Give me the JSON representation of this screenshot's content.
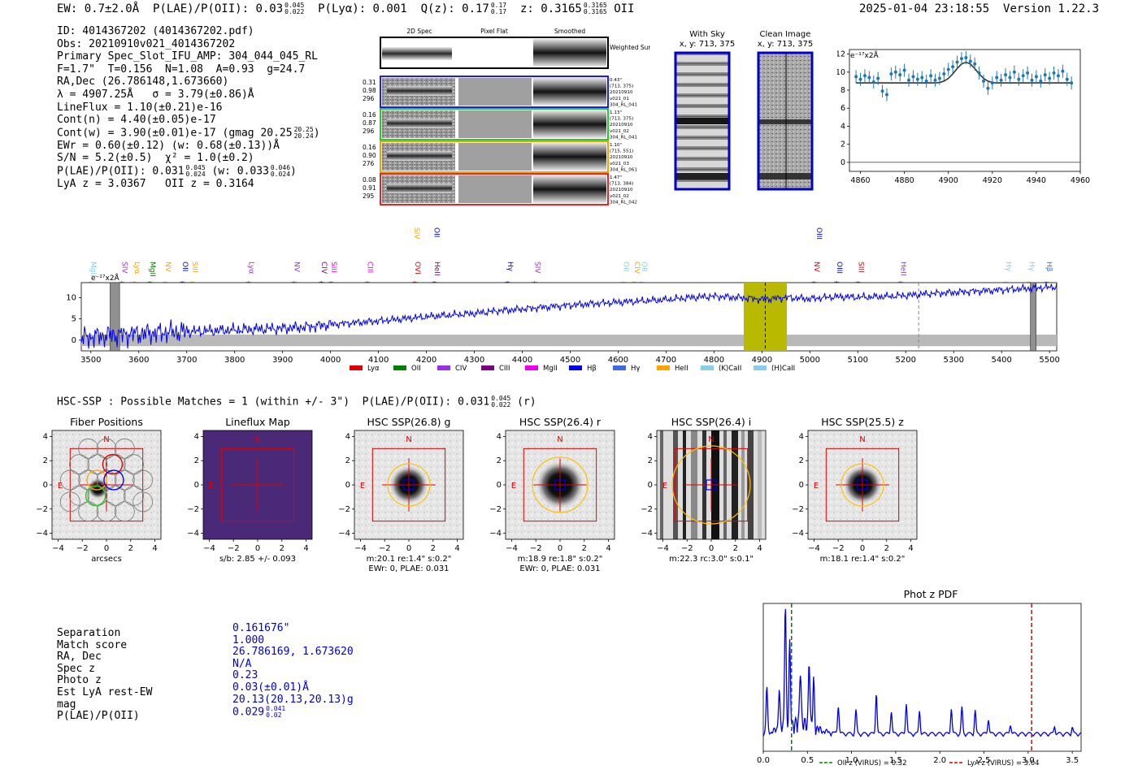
{
  "header": {
    "ew_label": "EW: 0.7±2.0Å",
    "plae_label": "P(LAE)/P(OII): 0.03",
    "plae_hi": "0.045",
    "plae_lo": "0.022",
    "plya_label": "P(Lyα): 0.001",
    "qz_label": "Q(z): 0.17",
    "qz_hi": "0.17",
    "qz_lo": "0.17",
    "z_label": "z: 0.3165",
    "z_hi": "0.3165",
    "z_lo": "0.3165",
    "z_line": "OII",
    "timestamp": "2025-01-04 23:18:55",
    "version": "Version 1.22.3"
  },
  "info": {
    "id": "ID: 4014367202 (4014367202.pdf)",
    "obs": "Obs: 20210910v021_4014367202",
    "primary": "Primary Spec_Slot_IFU_AMP: 304_044_045_RL",
    "fiber": "F=1.7\"  T=0.156  N=1.08  A=0.93  g=24.7",
    "radec": "RA,Dec (26.786148,1.673660)",
    "lambda": "λ = 4907.25Å   σ = 3.79(±0.86)Å",
    "lineflux": "LineFlux = 1.10(±0.21)e-16",
    "contn": "Cont(n) = 4.40(±0.05)e-17",
    "contw": "Cont(w) = 3.90(±0.01)e-17 (gmag 20.25",
    "contw_hi": "20.25",
    "contw_lo": "20.24",
    "ewr": "EWr = 0.60(±0.12) (w: 0.68(±0.13))Å",
    "sn": "S/N = 5.2(±0.5)  χ² = 1.0(±0.2)",
    "plae": "P(LAE)/P(OII): 0.031",
    "plae_hi": "0.045",
    "plae_lo": "0.024",
    "plae_w": "(w: 0.033",
    "plae_w_hi": "0.046",
    "plae_w_lo": "0.024",
    "lya": "LyA z = 3.0367   OII z = 0.3164"
  },
  "spec2d": {
    "col_2d": "2D Spec",
    "col_flat": "Pixel Flat",
    "col_smooth": "Smoothed",
    "weighted_sum": "Weighted Sum",
    "fibers": [
      {
        "w1": "0.31",
        "w2": "0.98",
        "w3": "296",
        "dist": "0.43\"",
        "xy": "(713, 375)",
        "date": "20210910",
        "obs": "v021_01",
        "amp": "304_RL_041",
        "color": "#1a1aff"
      },
      {
        "w1": "0.16",
        "w2": "0.87",
        "w3": "296",
        "dist": "1.13\"",
        "xy": "(713, 375)",
        "date": "20210910",
        "obs": "v021_02",
        "amp": "304_RL_041",
        "color": "#22cc22"
      },
      {
        "w1": "0.16",
        "w2": "0.90",
        "w3": "276",
        "dist": "1.10\"",
        "xy": "(715, 551)",
        "date": "20210910",
        "obs": "v021_03",
        "amp": "304_RL_061",
        "color": "#ff9900"
      },
      {
        "w1": "0.08",
        "w2": "0.91",
        "w3": "295",
        "dist": "1.47\"",
        "xy": "(713, 384)",
        "date": "20210910",
        "obs": "v021_02",
        "amp": "304_RL_042",
        "color": "#ee2222"
      }
    ]
  },
  "with_sky": {
    "title": "With Sky",
    "coords": "x, y: 713, 375"
  },
  "clean_image": {
    "title": "Clean Image",
    "coords": "x, y: 713, 375"
  },
  "colors": {
    "blue": "#0000ee",
    "gray": "#b9b9b9",
    "olive": "#b9b900",
    "red": "#e00000",
    "orange": "#ffa500"
  },
  "zoom_plot": {
    "unit_label": "e⁻¹⁷x2Å",
    "x_ticks": [
      "4860",
      "4880",
      "4900",
      "4920",
      "4940",
      "4960"
    ],
    "y_ticks": [
      "0",
      "2",
      "4",
      "6",
      "8",
      "10",
      "12"
    ]
  },
  "full_spec": {
    "unit_label": "e⁻¹⁷x2Å",
    "x_ticks": [
      "3500",
      "3600",
      "3700",
      "3800",
      "3900",
      "4000",
      "4100",
      "4200",
      "4300",
      "4400",
      "4500",
      "4600",
      "4700",
      "4800",
      "4900",
      "5000",
      "5100",
      "5200",
      "5300",
      "5400",
      "5500"
    ],
    "y_ticks": [
      "0",
      "5",
      "10"
    ],
    "line_labels": [
      {
        "t": "MgII",
        "w": 3500,
        "c": "#87ceeb"
      },
      {
        "t": "SIV",
        "w": 3566,
        "c": "#9a30e0"
      },
      {
        "t": "Lyα",
        "w": 3592,
        "c": "#ffa500"
      },
      {
        "t": "MgII",
        "w": 3624,
        "c": "#008000"
      },
      {
        "t": "NV",
        "w": 3656,
        "c": "#ffa500"
      },
      {
        "t": "OII",
        "w": 3692,
        "c": "#0000ee"
      },
      {
        "t": "SIII",
        "w": 3712,
        "c": "#ffa500"
      },
      {
        "t": "Lyα",
        "w": 3830,
        "c": "#9a30e0"
      },
      {
        "t": "NV",
        "w": 3925,
        "c": "#9a30e0"
      },
      {
        "t": "CIV",
        "w": 3982,
        "c": "#800080"
      },
      {
        "t": "SIII",
        "w": 4002,
        "c": "#ee00ee"
      },
      {
        "t": "CIII",
        "w": 4078,
        "c": "#ee00ee"
      },
      {
        "t": "OVI",
        "w": 4177,
        "c": "#e00000"
      },
      {
        "t": "HeII",
        "w": 4218,
        "c": "#800080"
      },
      {
        "t": "Hγ",
        "w": 4370,
        "c": "#0000ee"
      },
      {
        "t": "SIV",
        "w": 4427,
        "c": "#9a30e0"
      },
      {
        "t": "OII",
        "w": 4612,
        "c": "#87ceeb"
      },
      {
        "t": "CIV",
        "w": 4635,
        "c": "#ffa500"
      },
      {
        "t": "OII",
        "w": 4650,
        "c": "#87ceeb"
      },
      {
        "t": "NV",
        "w": 5010,
        "c": "#e00000"
      },
      {
        "t": "OIII",
        "w": 5057,
        "c": "#0000cc"
      },
      {
        "t": "SIII",
        "w": 5102,
        "c": "#e00000"
      },
      {
        "t": "HeII",
        "w": 5190,
        "c": "#9a30e0"
      },
      {
        "t": "Hγ",
        "w": 5410,
        "c": "#87ceeb"
      },
      {
        "t": "Hγ",
        "w": 5458,
        "c": "#87ceeb"
      },
      {
        "t": "Hβ",
        "w": 5495,
        "c": "#4169e1"
      }
    ],
    "upper_labels": [
      {
        "t": "SIV",
        "w": 4175,
        "c": "#ffa500"
      },
      {
        "t": "OII",
        "w": 4217,
        "c": "#0000ee"
      },
      {
        "t": "OIII",
        "w": 5015,
        "c": "#0000ee"
      }
    ],
    "legend": [
      {
        "t": "Lyα",
        "c": "#e00000"
      },
      {
        "t": "OII",
        "c": "#008000"
      },
      {
        "t": "CIV",
        "c": "#9a30e0"
      },
      {
        "t": "CIII",
        "c": "#800080"
      },
      {
        "t": "MgII",
        "c": "#ee00ee"
      },
      {
        "t": "Hβ",
        "c": "#0000ee"
      },
      {
        "t": "Hγ",
        "c": "#4169e1"
      },
      {
        "t": "HeII",
        "c": "#ffa500"
      },
      {
        "t": "(K)CaII",
        "c": "#87ceeb"
      },
      {
        "t": "(H)CaII",
        "c": "#87ceeb"
      }
    ]
  },
  "hsc_line": "HSC-SSP : Possible Matches = 1 (within +/- 3\")  P(LAE)/P(OII): 0.031",
  "hsc_hi": "0.045",
  "hsc_lo": "0.022",
  "hsc_band": "(r)",
  "cutouts": [
    {
      "title": "Fiber Positions",
      "cap1": "arcsecs",
      "cap2": ""
    },
    {
      "title": "Lineflux Map",
      "cap1": "s/b: 2.85 +/- 0.093",
      "cap2": ""
    },
    {
      "title": "HSC SSP(26.8) g",
      "cap1": "m:20.1  re:1.4\"  s:0.2\"",
      "cap2": "EWr: 0, PLAE: 0.031"
    },
    {
      "title": "HSC SSP(26.4) r",
      "cap1": "m:18.9  re:1.8\"  s:0.2\"",
      "cap2": "EWr: 0, PLAE: 0.031"
    },
    {
      "title": "HSC SSP(26.4) i",
      "cap1": "m:22.3 rc:3.0\"  s:0.1\"",
      "cap2": ""
    },
    {
      "title": "HSC SSP(25.5) z",
      "cap1": "m:18.1  re:1.4\"  s:0.2\"",
      "cap2": ""
    }
  ],
  "compass": {
    "n": "N",
    "e": "E"
  },
  "cutout_ticks": [
    "−4",
    "−2",
    "0",
    "2",
    "4"
  ],
  "catalog": {
    "labels": [
      "Separation",
      "Match score",
      "RA, Dec",
      "Spec z",
      "Photo z",
      "Est LyA rest-EW",
      "mag",
      "P(LAE)/P(OII)"
    ],
    "values": [
      "0.161676\"",
      "1.000",
      "26.786169, 1.673620",
      "N/A",
      "0.23",
      "0.03(±0.01)Å",
      "20.13(20.13,20.13)g",
      "0.029"
    ],
    "plae_hi": "0.041",
    "plae_lo": "0.02"
  },
  "chart_data": [
    {
      "type": "line",
      "title": "",
      "xlabel": "",
      "ylabel": "e⁻¹⁷x2Å",
      "xlim": [
        4855,
        4960
      ],
      "ylim": [
        -1,
        12.5
      ],
      "x": [
        4858,
        4860,
        4862,
        4864,
        4866,
        4868,
        4870,
        4872,
        4874,
        4876,
        4878,
        4880,
        4882,
        4884,
        4886,
        4888,
        4890,
        4892,
        4894,
        4896,
        4898,
        4900,
        4902,
        4904,
        4906,
        4908,
        4910,
        4912,
        4914,
        4916,
        4918,
        4920,
        4922,
        4924,
        4926,
        4928,
        4930,
        4932,
        4934,
        4936,
        4938,
        4940,
        4942,
        4944,
        4946,
        4948,
        4950,
        4952,
        4954,
        4956
      ],
      "series": [
        {
          "name": "data",
          "values": [
            9.5,
            9.2,
            9.6,
            9.4,
            8.9,
            9.3,
            7.9,
            7.5,
            9.8,
            10.0,
            9.7,
            10.2,
            9.1,
            9.5,
            9.2,
            9.4,
            9.0,
            9.6,
            9.1,
            9.3,
            9.8,
            10.3,
            10.6,
            11.1,
            11.5,
            11.6,
            11.2,
            10.9,
            9.9,
            9.0,
            8.2,
            8.8,
            9.4,
            9.1,
            9.7,
            9.4,
            10.0,
            9.2,
            9.6,
            9.9,
            9.1,
            9.5,
            9.0,
            9.7,
            9.3,
            9.9,
            9.6,
            10.1,
            9.2,
            8.8
          ]
        },
        {
          "name": "fit",
          "values": [
            8.8,
            8.8,
            8.8,
            8.8,
            8.8,
            8.8,
            8.8,
            8.8,
            8.8,
            8.8,
            8.8,
            8.8,
            8.8,
            8.8,
            8.8,
            8.8,
            8.8,
            8.8,
            8.8,
            8.85,
            9.0,
            9.3,
            9.8,
            10.4,
            10.9,
            11.1,
            10.9,
            10.4,
            9.8,
            9.3,
            9.0,
            8.85,
            8.8,
            8.8,
            8.8,
            8.8,
            8.8,
            8.8,
            8.8,
            8.8,
            8.8,
            8.8,
            8.8,
            8.8,
            8.8,
            8.8,
            8.8,
            8.8,
            8.8,
            8.8
          ]
        }
      ]
    },
    {
      "type": "line",
      "title": "",
      "xlabel": "",
      "ylabel": "e⁻¹⁷x2Å",
      "xlim": [
        3480,
        5515
      ],
      "ylim": [
        -2.5,
        13.5
      ],
      "x": [
        3480,
        3520,
        3560,
        3600,
        3650,
        3700,
        3750,
        3800,
        3850,
        3900,
        3950,
        4000,
        4050,
        4100,
        4150,
        4200,
        4250,
        4300,
        4350,
        4400,
        4450,
        4500,
        4550,
        4600,
        4650,
        4700,
        4750,
        4800,
        4850,
        4900,
        4950,
        5000,
        5050,
        5100,
        5150,
        5200,
        5250,
        5300,
        5350,
        5400,
        5450,
        5500,
        5515
      ],
      "series": [
        {
          "name": "flux",
          "values": [
            0.5,
            1.0,
            1.3,
            1.5,
            1.8,
            2.0,
            2.2,
            2.4,
            2.6,
            2.8,
            3.1,
            3.7,
            4.1,
            4.5,
            5.0,
            5.5,
            5.9,
            6.3,
            6.9,
            7.3,
            7.8,
            8.2,
            8.6,
            8.9,
            9.2,
            9.5,
            10.0,
            10.3,
            10.0,
            9.6,
            10.0,
            9.7,
            10.2,
            10.1,
            10.2,
            10.5,
            10.9,
            11.2,
            11.5,
            11.8,
            12.1,
            12.4,
            12.6
          ]
        }
      ],
      "highlight_band": [
        4862,
        4952
      ],
      "marker_lines": [
        4907,
        5227
      ],
      "masked_regions": [
        [
          3540,
          3560
        ],
        [
          5460,
          5472
        ]
      ]
    },
    {
      "type": "line",
      "title": "Phot z PDF",
      "xlabel": "",
      "ylabel": "",
      "xlim": [
        0.0,
        3.6
      ],
      "x_ticks": [
        "0.0",
        "0.5",
        "1.0",
        "1.5",
        "2.0",
        "2.5",
        "3.0",
        "3.5"
      ],
      "vlines": [
        {
          "name": "OII z (VIRUS) = 0.32",
          "x": 0.32,
          "color": "#008000"
        },
        {
          "name": "LyA z (VIRUS) = 3.04",
          "x": 3.04,
          "color": "#e00000"
        }
      ],
      "peaks": [
        {
          "x": 0.04,
          "h": 0.35
        },
        {
          "x": 0.18,
          "h": 0.32
        },
        {
          "x": 0.25,
          "h": 1.0
        },
        {
          "x": 0.3,
          "h": 0.62
        },
        {
          "x": 0.42,
          "h": 0.45
        },
        {
          "x": 0.52,
          "h": 0.52
        },
        {
          "x": 0.57,
          "h": 0.37
        },
        {
          "x": 0.85,
          "h": 0.22
        },
        {
          "x": 1.05,
          "h": 0.18
        },
        {
          "x": 1.28,
          "h": 0.32
        },
        {
          "x": 1.45,
          "h": 0.18
        },
        {
          "x": 1.62,
          "h": 0.24
        },
        {
          "x": 1.77,
          "h": 0.18
        },
        {
          "x": 2.13,
          "h": 0.2
        },
        {
          "x": 2.25,
          "h": 0.2
        },
        {
          "x": 2.4,
          "h": 0.18
        },
        {
          "x": 2.55,
          "h": 0.12
        },
        {
          "x": 2.8,
          "h": 0.08
        },
        {
          "x": 3.3,
          "h": 0.06
        },
        {
          "x": 3.5,
          "h": 0.05
        }
      ]
    }
  ]
}
